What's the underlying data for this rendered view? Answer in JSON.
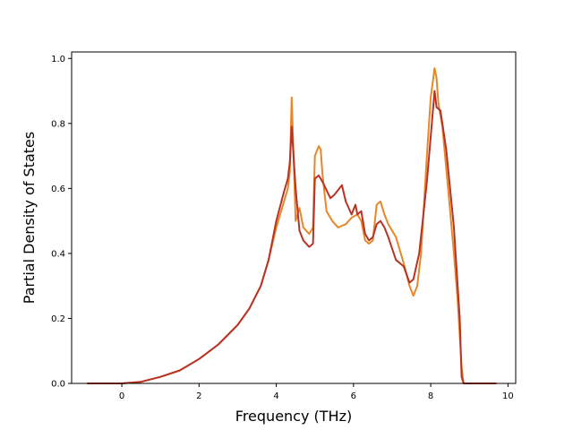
{
  "chart_data": {
    "type": "line",
    "title": "",
    "xlabel": "Frequency (THz)",
    "ylabel": "Partial Density of States",
    "xlim": [
      -1.3,
      10.2
    ],
    "ylim": [
      0.0,
      1.02
    ],
    "xticks": [
      0,
      2,
      4,
      6,
      8,
      10
    ],
    "yticks": [
      0.0,
      0.2,
      0.4,
      0.6,
      0.8,
      1.0
    ],
    "xtick_labels": [
      "0",
      "2",
      "4",
      "6",
      "8",
      "10"
    ],
    "ytick_labels": [
      "0.0",
      "0.2",
      "0.4",
      "0.6",
      "0.8",
      "1.0"
    ],
    "grid": false,
    "series": [
      {
        "color": "#e8862a",
        "x": [
          -0.9,
          0.0,
          0.5,
          1.0,
          1.5,
          2.0,
          2.5,
          3.0,
          3.3,
          3.6,
          3.8,
          4.0,
          4.2,
          4.3,
          4.35,
          4.4,
          4.5,
          4.6,
          4.7,
          4.85,
          4.95,
          5.0,
          5.1,
          5.15,
          5.2,
          5.3,
          5.45,
          5.6,
          5.8,
          5.95,
          6.1,
          6.2,
          6.3,
          6.4,
          6.5,
          6.6,
          6.7,
          6.8,
          6.9,
          7.1,
          7.3,
          7.45,
          7.55,
          7.65,
          7.75,
          7.9,
          8.0,
          8.1,
          8.15,
          8.2,
          8.3,
          8.45,
          8.6,
          8.7,
          8.8,
          8.85,
          9.0,
          9.7
        ],
        "y": [
          0.0,
          0.0,
          0.005,
          0.02,
          0.04,
          0.075,
          0.12,
          0.18,
          0.23,
          0.3,
          0.38,
          0.48,
          0.56,
          0.6,
          0.65,
          0.88,
          0.5,
          0.54,
          0.48,
          0.46,
          0.48,
          0.7,
          0.73,
          0.72,
          0.64,
          0.53,
          0.5,
          0.48,
          0.49,
          0.51,
          0.52,
          0.5,
          0.44,
          0.43,
          0.44,
          0.55,
          0.56,
          0.52,
          0.49,
          0.45,
          0.37,
          0.3,
          0.27,
          0.3,
          0.4,
          0.7,
          0.88,
          0.97,
          0.94,
          0.86,
          0.79,
          0.6,
          0.4,
          0.25,
          0.05,
          0.0,
          0.0,
          0.0
        ]
      },
      {
        "color": "#b83325",
        "x": [
          -0.9,
          0.0,
          0.5,
          1.0,
          1.5,
          2.0,
          2.5,
          3.0,
          3.3,
          3.6,
          3.8,
          4.0,
          4.2,
          4.3,
          4.35,
          4.4,
          4.5,
          4.6,
          4.7,
          4.85,
          4.95,
          5.0,
          5.1,
          5.2,
          5.4,
          5.5,
          5.7,
          5.8,
          5.95,
          6.05,
          6.1,
          6.2,
          6.3,
          6.4,
          6.5,
          6.6,
          6.7,
          6.8,
          6.9,
          7.1,
          7.3,
          7.45,
          7.55,
          7.7,
          7.9,
          8.0,
          8.1,
          8.15,
          8.25,
          8.4,
          8.6,
          8.75,
          8.8,
          8.85,
          9.0,
          9.7
        ],
        "y": [
          0.0,
          0.0,
          0.005,
          0.02,
          0.04,
          0.075,
          0.12,
          0.18,
          0.23,
          0.3,
          0.38,
          0.5,
          0.59,
          0.63,
          0.68,
          0.79,
          0.6,
          0.47,
          0.44,
          0.42,
          0.43,
          0.63,
          0.64,
          0.62,
          0.57,
          0.58,
          0.61,
          0.56,
          0.52,
          0.55,
          0.52,
          0.53,
          0.46,
          0.44,
          0.45,
          0.49,
          0.5,
          0.48,
          0.45,
          0.38,
          0.36,
          0.31,
          0.32,
          0.4,
          0.62,
          0.76,
          0.9,
          0.85,
          0.84,
          0.72,
          0.48,
          0.2,
          0.02,
          0.0,
          0.0,
          0.0
        ]
      }
    ]
  }
}
